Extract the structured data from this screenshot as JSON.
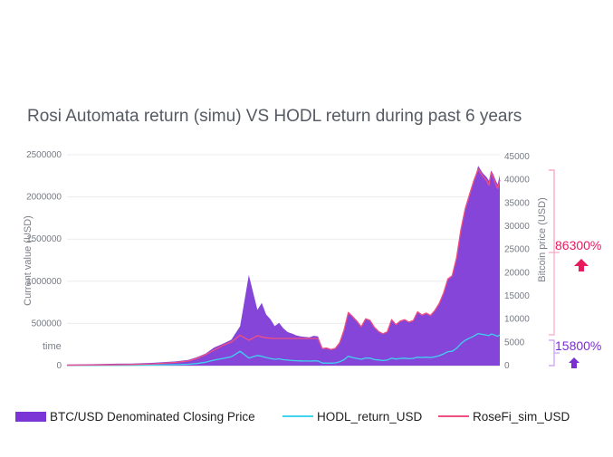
{
  "chart_data": {
    "type": "area",
    "title": "Rosi Automata return (simu)  VS  HODL return during past 6 years",
    "y_left": {
      "label": "Current value  (USD)",
      "ticks": [
        "2500000",
        "2000000",
        "1500000",
        "1000000",
        "500000",
        "0"
      ],
      "tick_values": [
        2500000,
        2000000,
        1500000,
        1000000,
        500000,
        0
      ],
      "range": [
        0,
        2500000
      ]
    },
    "y_right": {
      "label": "Bitcoin price (USD)",
      "ticks": [
        "45000",
        "40000",
        "35000",
        "30000",
        "25000",
        "20000",
        "15000",
        "10000",
        "5000",
        "0"
      ],
      "tick_values": [
        45000,
        40000,
        35000,
        30000,
        25000,
        20000,
        15000,
        10000,
        5000,
        0
      ],
      "range": [
        0,
        45000
      ]
    },
    "x_label": "time",
    "x": [
      0,
      0.05,
      0.1,
      0.15,
      0.2,
      0.25,
      0.28,
      0.3,
      0.32,
      0.34,
      0.36,
      0.38,
      0.4,
      0.42,
      0.44,
      0.45,
      0.46,
      0.47,
      0.48,
      0.49,
      0.5,
      0.51,
      0.52,
      0.53,
      0.54,
      0.55,
      0.56,
      0.57,
      0.58,
      0.59,
      0.6,
      0.61,
      0.62,
      0.63,
      0.64,
      0.65,
      0.66,
      0.67,
      0.68,
      0.69,
      0.7,
      0.71,
      0.72,
      0.73,
      0.74,
      0.75,
      0.76,
      0.77,
      0.78,
      0.79,
      0.8,
      0.81,
      0.82,
      0.83,
      0.84,
      0.85,
      0.86,
      0.87,
      0.88,
      0.89,
      0.9,
      0.91,
      0.92,
      0.93,
      0.94,
      0.95,
      0.96,
      0.97,
      0.975,
      0.98,
      0.985,
      0.99,
      0.995,
      1.0
    ],
    "series": [
      {
        "name": "BTC/USD Denominated Closing Price",
        "color": "#7b35d6",
        "type": "area",
        "values": [
          250,
          300,
          380,
          450,
          600,
          900,
          1200,
          1800,
          2600,
          3900,
          4700,
          5600,
          8500,
          19500,
          12000,
          13500,
          11000,
          10000,
          8500,
          9200,
          8000,
          7200,
          6900,
          6500,
          6300,
          6200,
          6100,
          6400,
          6300,
          3800,
          3900,
          3500,
          3700,
          4800,
          7500,
          11500,
          10500,
          9500,
          8300,
          10000,
          9700,
          8200,
          7300,
          6800,
          7200,
          9800,
          8700,
          9500,
          9800,
          9300,
          9600,
          11500,
          10800,
          11200,
          10700,
          11800,
          13300,
          15500,
          18500,
          19200,
          23000,
          29000,
          33500,
          36500,
          39500,
          43000,
          41500,
          40500,
          39800,
          42000,
          41200,
          40000,
          39000,
          41000
        ]
      },
      {
        "name": "HODL_return_USD",
        "color": "#3fd3ee",
        "type": "line",
        "values": [
          2000,
          2500,
          3500,
          4500,
          6500,
          11000,
          16000,
          25000,
          40000,
          65000,
          85000,
          105000,
          170000,
          90000,
          120000,
          110000,
          95000,
          85000,
          75000,
          80000,
          70000,
          65000,
          60000,
          58000,
          56000,
          55000,
          54000,
          56000,
          55000,
          30000,
          31000,
          29000,
          32000,
          45000,
          70000,
          110000,
          95000,
          85000,
          75000,
          90000,
          88000,
          72000,
          66000,
          60000,
          65000,
          88000,
          78000,
          85000,
          88000,
          82000,
          86000,
          100000,
          95000,
          100000,
          95000,
          104000,
          118000,
          138000,
          165000,
          170000,
          205000,
          260000,
          300000,
          325000,
          350000,
          380000,
          370000,
          360000,
          355000,
          375000,
          368000,
          357000,
          348000,
          366000
        ]
      },
      {
        "name": "RoseFi_sim_USD",
        "color": "#f04f81",
        "type": "line",
        "values": [
          4000,
          6000,
          9000,
          13000,
          20000,
          38000,
          55000,
          85000,
          130000,
          185000,
          240000,
          280000,
          360000,
          300000,
          355000,
          340000,
          330000,
          325000,
          322000,
          322000,
          322000,
          322000,
          322000,
          322000,
          322000,
          322000,
          322000,
          322000,
          322000,
          200000,
          208000,
          190000,
          205000,
          270000,
          420000,
          630000,
          580000,
          525000,
          460000,
          555000,
          537000,
          455000,
          405000,
          378000,
          400000,
          545000,
          485000,
          528000,
          545000,
          516000,
          533000,
          638000,
          600000,
          622000,
          594000,
          655000,
          738000,
          860000,
          1027000,
          1066000,
          1277000,
          1610000,
          1860000,
          2027000,
          2193000,
          2330000,
          2250000,
          2190000,
          2140000,
          2290000,
          2230000,
          2160000,
          2100000,
          2200000
        ]
      }
    ],
    "annotations": [
      {
        "text": "86300%",
        "color": "#e8195c"
      },
      {
        "text": "15800%",
        "color": "#7a2fd0"
      }
    ],
    "legend": {
      "position": "bottom",
      "items": [
        {
          "label": "BTC/USD Denominated Closing Price",
          "color": "#7b35d6",
          "kind": "area"
        },
        {
          "label": "HODL_return_USD",
          "color": "#3fd3ee",
          "kind": "line"
        },
        {
          "label": "RoseFi_sim_USD",
          "color": "#f04f81",
          "kind": "line"
        }
      ]
    },
    "grid": true
  }
}
